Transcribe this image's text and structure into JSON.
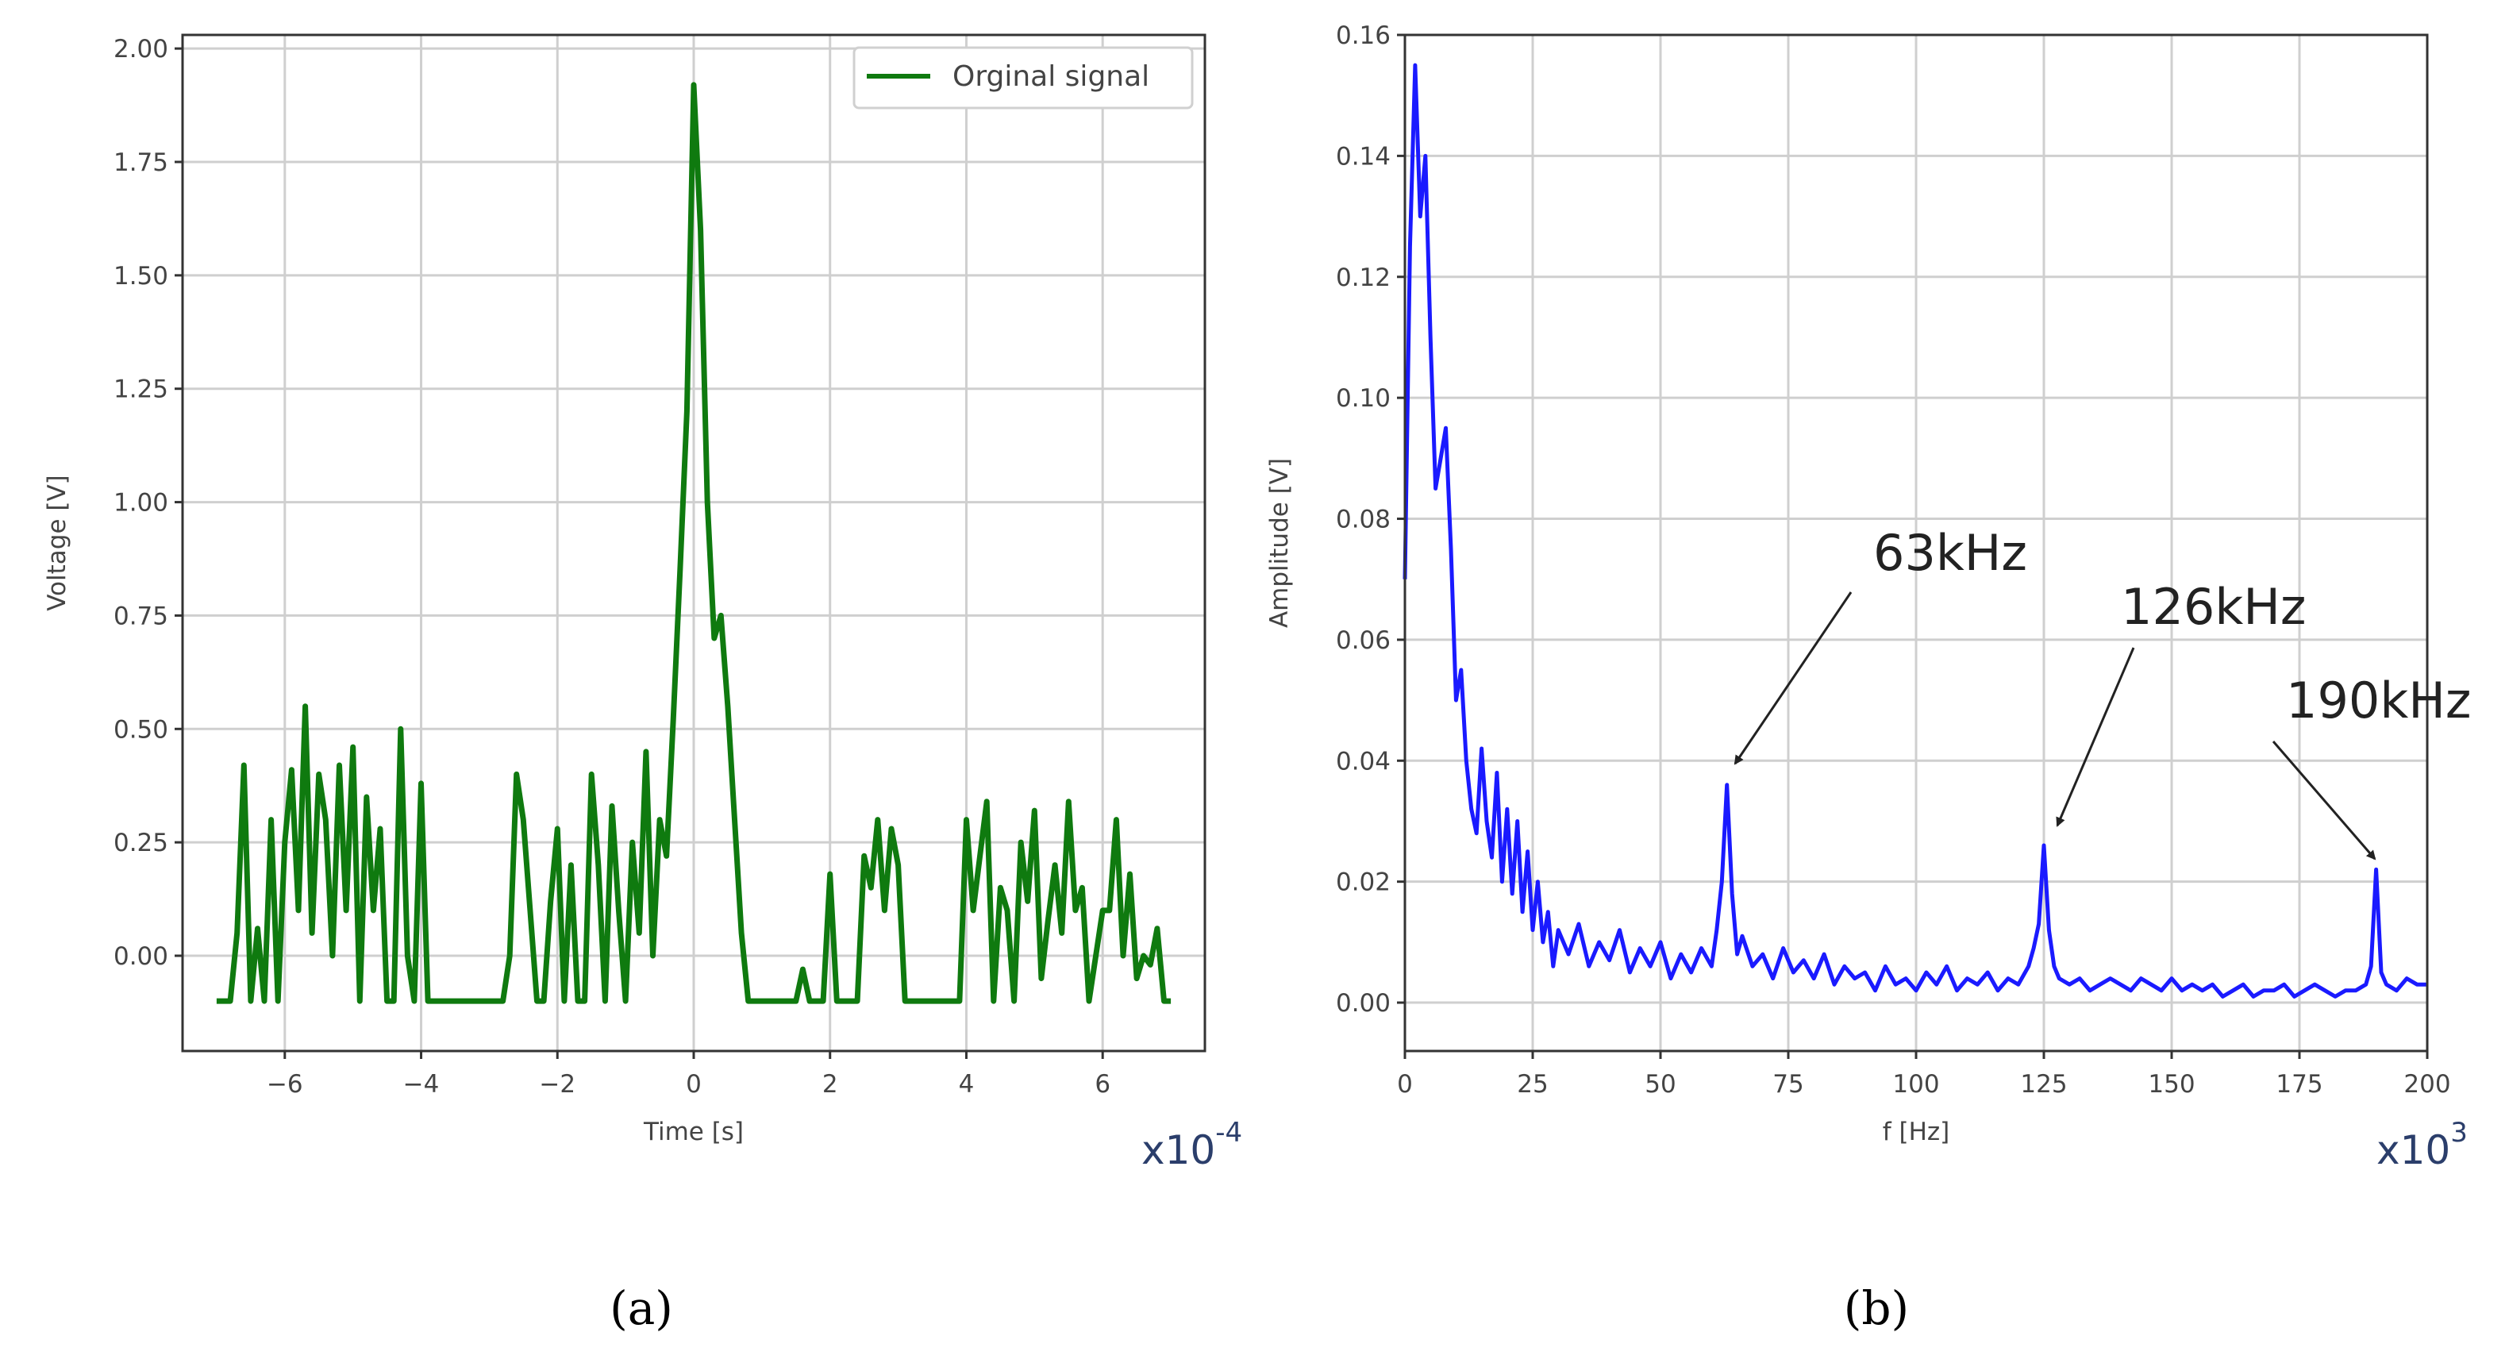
{
  "chart_data": [
    {
      "type": "line",
      "panel_label": "(a)",
      "xlabel": "Time [s]",
      "ylabel": "Voltage [V]",
      "x_multiplier": "x10",
      "x_multiplier_exp": "-4",
      "xlim": [
        -7.5,
        7.5
      ],
      "ylim": [
        -0.21,
        2.03
      ],
      "xticks": [
        -6,
        -4,
        -2,
        0,
        2,
        4,
        6
      ],
      "xtick_labels": [
        "−6",
        "−4",
        "−2",
        "0",
        "2",
        "4",
        "6"
      ],
      "yticks": [
        0.0,
        0.25,
        0.5,
        0.75,
        1.0,
        1.25,
        1.5,
        1.75,
        2.0
      ],
      "ytick_labels": [
        "0.00",
        "0.25",
        "0.50",
        "0.75",
        "1.00",
        "1.25",
        "1.50",
        "1.75",
        "2.00"
      ],
      "grid": true,
      "legend_position": "upper right",
      "series": [
        {
          "name": "Orginal signal",
          "color": "#0f7a0f",
          "x": [
            -7.0,
            -6.9,
            -6.8,
            -6.7,
            -6.6,
            -6.5,
            -6.4,
            -6.3,
            -6.2,
            -6.1,
            -6.0,
            -5.9,
            -5.8,
            -5.7,
            -5.6,
            -5.5,
            -5.4,
            -5.3,
            -5.2,
            -5.1,
            -5.0,
            -4.9,
            -4.8,
            -4.7,
            -4.6,
            -4.5,
            -4.4,
            -4.3,
            -4.2,
            -4.1,
            -4.0,
            -3.9,
            -3.8,
            -3.7,
            -3.6,
            -3.5,
            -3.4,
            -3.3,
            -3.2,
            -3.1,
            -3.0,
            -2.9,
            -2.8,
            -2.7,
            -2.6,
            -2.5,
            -2.4,
            -2.3,
            -2.2,
            -2.1,
            -2.0,
            -1.9,
            -1.8,
            -1.7,
            -1.6,
            -1.5,
            -1.4,
            -1.3,
            -1.2,
            -1.1,
            -1.0,
            -0.9,
            -0.8,
            -0.7,
            -0.6,
            -0.5,
            -0.4,
            -0.3,
            -0.2,
            -0.1,
            0.0,
            0.1,
            0.2,
            0.3,
            0.4,
            0.5,
            0.6,
            0.7,
            0.8,
            0.9,
            1.0,
            1.1,
            1.2,
            1.3,
            1.4,
            1.5,
            1.6,
            1.7,
            1.8,
            1.9,
            2.0,
            2.1,
            2.2,
            2.3,
            2.4,
            2.5,
            2.6,
            2.7,
            2.8,
            2.9,
            3.0,
            3.1,
            3.2,
            3.3,
            3.4,
            3.5,
            3.6,
            3.7,
            3.8,
            3.9,
            4.0,
            4.1,
            4.2,
            4.3,
            4.4,
            4.5,
            4.6,
            4.7,
            4.8,
            4.9,
            5.0,
            5.1,
            5.2,
            5.3,
            5.4,
            5.5,
            5.6,
            5.7,
            5.8,
            5.9,
            6.0,
            6.1,
            6.2,
            6.3,
            6.4,
            6.5,
            6.6,
            6.7,
            6.8,
            6.9,
            7.0
          ],
          "y": [
            -0.1,
            -0.1,
            -0.1,
            0.05,
            0.42,
            -0.1,
            0.06,
            -0.1,
            0.3,
            -0.1,
            0.25,
            0.41,
            0.1,
            0.55,
            0.05,
            0.4,
            0.3,
            0.0,
            0.42,
            0.1,
            0.46,
            -0.1,
            0.35,
            0.1,
            0.28,
            -0.1,
            -0.1,
            0.5,
            0.0,
            -0.1,
            0.38,
            -0.1,
            -0.1,
            -0.1,
            -0.1,
            -0.1,
            -0.1,
            -0.1,
            -0.1,
            -0.1,
            -0.1,
            -0.1,
            -0.1,
            0.0,
            0.4,
            0.3,
            0.1,
            -0.1,
            -0.1,
            0.12,
            0.28,
            -0.1,
            0.2,
            -0.1,
            -0.1,
            0.4,
            0.2,
            -0.1,
            0.33,
            0.1,
            -0.1,
            0.25,
            0.05,
            0.45,
            0.0,
            0.3,
            0.22,
            0.52,
            0.85,
            1.2,
            1.92,
            1.6,
            1.0,
            0.7,
            0.75,
            0.55,
            0.3,
            0.05,
            -0.1,
            -0.1,
            -0.1,
            -0.1,
            -0.1,
            -0.1,
            -0.1,
            -0.1,
            -0.03,
            -0.1,
            -0.1,
            -0.1,
            0.18,
            -0.1,
            -0.1,
            -0.1,
            -0.1,
            0.22,
            0.15,
            0.3,
            0.1,
            0.28,
            0.2,
            -0.1,
            -0.1,
            -0.1,
            -0.1,
            -0.1,
            -0.1,
            -0.1,
            -0.1,
            -0.1,
            0.3,
            0.1,
            0.22,
            0.34,
            -0.1,
            0.15,
            0.1,
            -0.1,
            0.25,
            0.12,
            0.32,
            -0.05,
            0.08,
            0.2,
            0.05,
            0.34,
            0.1,
            0.15,
            -0.1,
            0.0,
            0.1,
            0.1,
            0.3,
            0.0,
            0.18,
            -0.05,
            0.0,
            -0.02,
            0.06,
            -0.1,
            -0.1
          ]
        }
      ]
    },
    {
      "type": "line",
      "panel_label": "(b)",
      "xlabel": "f [Hz]",
      "ylabel": "Amplitude [V]",
      "x_multiplier": "x10",
      "x_multiplier_exp": "3",
      "xlim": [
        0,
        200
      ],
      "ylim": [
        -0.008,
        0.16
      ],
      "xticks": [
        0,
        25,
        50,
        75,
        100,
        125,
        150,
        175,
        200
      ],
      "xtick_labels": [
        "0",
        "25",
        "50",
        "75",
        "100",
        "125",
        "150",
        "175",
        "200"
      ],
      "yticks": [
        0.0,
        0.02,
        0.04,
        0.06,
        0.08,
        0.1,
        0.12,
        0.14,
        0.16
      ],
      "ytick_labels": [
        "0.00",
        "0.02",
        "0.04",
        "0.06",
        "0.08",
        "0.10",
        "0.12",
        "0.14",
        "0.16"
      ],
      "grid": true,
      "series": [
        {
          "name": "",
          "color": "#1a1aff",
          "x": [
            0,
            1,
            2,
            3,
            4,
            5,
            6,
            7,
            8,
            9,
            10,
            11,
            12,
            13,
            14,
            15,
            16,
            17,
            18,
            19,
            20,
            21,
            22,
            23,
            24,
            25,
            26,
            27,
            28,
            29,
            30,
            32,
            34,
            36,
            38,
            40,
            42,
            44,
            46,
            48,
            50,
            52,
            54,
            56,
            58,
            60,
            61,
            62,
            63,
            64,
            65,
            66,
            68,
            70,
            72,
            74,
            76,
            78,
            80,
            82,
            84,
            86,
            88,
            90,
            92,
            94,
            96,
            98,
            100,
            102,
            104,
            106,
            108,
            110,
            112,
            114,
            116,
            118,
            120,
            122,
            123,
            124,
            125,
            126,
            127,
            128,
            130,
            132,
            134,
            136,
            138,
            140,
            142,
            144,
            146,
            148,
            150,
            152,
            154,
            156,
            158,
            160,
            162,
            164,
            166,
            168,
            170,
            172,
            174,
            176,
            178,
            180,
            182,
            184,
            186,
            188,
            189,
            190,
            191,
            192,
            194,
            196,
            198,
            200
          ],
          "y": [
            0.07,
            0.125,
            0.155,
            0.13,
            0.14,
            0.11,
            0.085,
            0.09,
            0.095,
            0.075,
            0.05,
            0.055,
            0.04,
            0.032,
            0.028,
            0.042,
            0.03,
            0.024,
            0.038,
            0.02,
            0.032,
            0.018,
            0.03,
            0.015,
            0.025,
            0.012,
            0.02,
            0.01,
            0.015,
            0.006,
            0.012,
            0.008,
            0.013,
            0.006,
            0.01,
            0.007,
            0.012,
            0.005,
            0.009,
            0.006,
            0.01,
            0.004,
            0.008,
            0.005,
            0.009,
            0.006,
            0.012,
            0.02,
            0.036,
            0.018,
            0.008,
            0.011,
            0.006,
            0.008,
            0.004,
            0.009,
            0.005,
            0.007,
            0.004,
            0.008,
            0.003,
            0.006,
            0.004,
            0.005,
            0.002,
            0.006,
            0.003,
            0.004,
            0.002,
            0.005,
            0.003,
            0.006,
            0.002,
            0.004,
            0.003,
            0.005,
            0.002,
            0.004,
            0.003,
            0.006,
            0.009,
            0.013,
            0.026,
            0.012,
            0.006,
            0.004,
            0.003,
            0.004,
            0.002,
            0.003,
            0.004,
            0.003,
            0.002,
            0.004,
            0.003,
            0.002,
            0.004,
            0.002,
            0.003,
            0.002,
            0.003,
            0.001,
            0.002,
            0.003,
            0.001,
            0.002,
            0.002,
            0.003,
            0.001,
            0.002,
            0.003,
            0.002,
            0.001,
            0.002,
            0.002,
            0.003,
            0.006,
            0.022,
            0.005,
            0.003,
            0.002,
            0.004,
            0.003,
            0.003
          ]
        }
      ],
      "annotations": [
        {
          "text": "63kHz",
          "x": 63,
          "y": 0.037
        },
        {
          "text": "126kHz",
          "x": 126,
          "y": 0.027
        },
        {
          "text": "190kHz",
          "x": 190,
          "y": 0.023
        }
      ]
    }
  ]
}
